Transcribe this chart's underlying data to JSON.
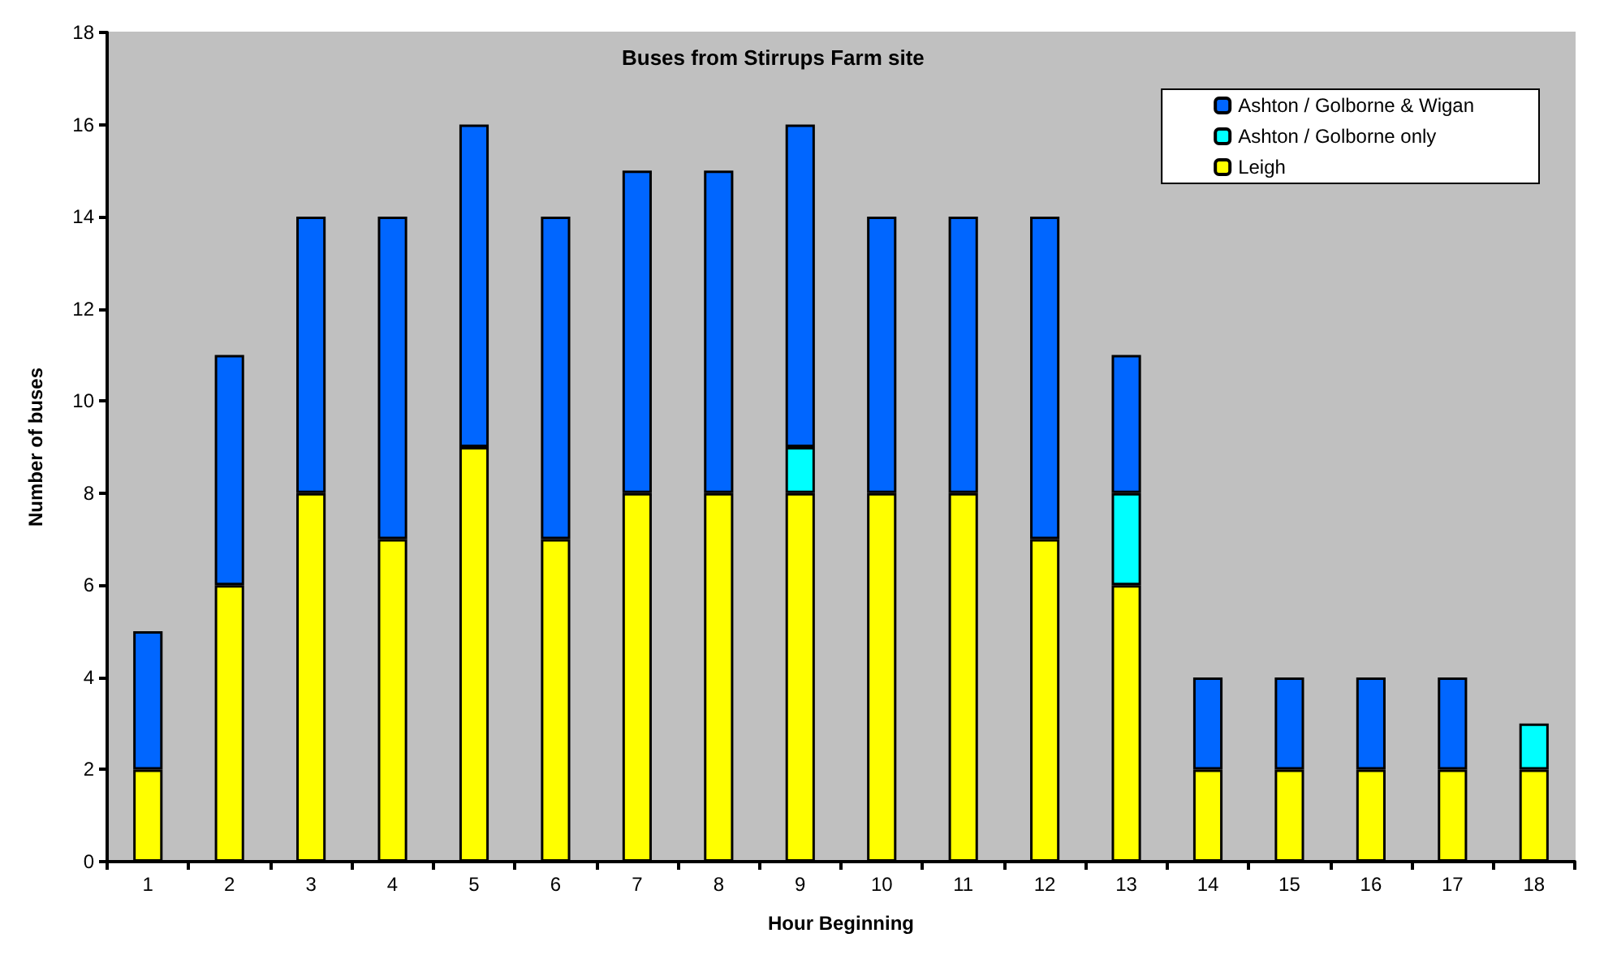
{
  "chart_data": {
    "type": "bar",
    "title": "Buses from Stirrups Farm site",
    "xlabel": "Hour Beginning",
    "ylabel": "Number of buses",
    "categories": [
      "1",
      "2",
      "3",
      "4",
      "5",
      "6",
      "7",
      "8",
      "9",
      "10",
      "11",
      "12",
      "13",
      "14",
      "15",
      "16",
      "17",
      "18"
    ],
    "stacked": true,
    "series": [
      {
        "name": "Leigh",
        "color": "#ffff00",
        "values": [
          2,
          6,
          8,
          7,
          9,
          7,
          8,
          8,
          8,
          8,
          8,
          7,
          6,
          2,
          2,
          2,
          2,
          2
        ]
      },
      {
        "name": "Ashton / Golborne only",
        "color": "#00ffff",
        "values": [
          0,
          0,
          0,
          0,
          0,
          0,
          0,
          0,
          1,
          0,
          0,
          0,
          2,
          0,
          0,
          0,
          0,
          1
        ]
      },
      {
        "name": "Ashton / Golborne & Wigan",
        "color": "#0066ff",
        "values": [
          3,
          5,
          6,
          7,
          7,
          7,
          7,
          7,
          7,
          6,
          6,
          7,
          3,
          2,
          2,
          2,
          2,
          0
        ]
      }
    ],
    "ylim": [
      0,
      18
    ],
    "yticks": [
      0,
      2,
      4,
      6,
      8,
      10,
      12,
      14,
      16,
      18
    ],
    "grid": false,
    "legend": "top right"
  }
}
